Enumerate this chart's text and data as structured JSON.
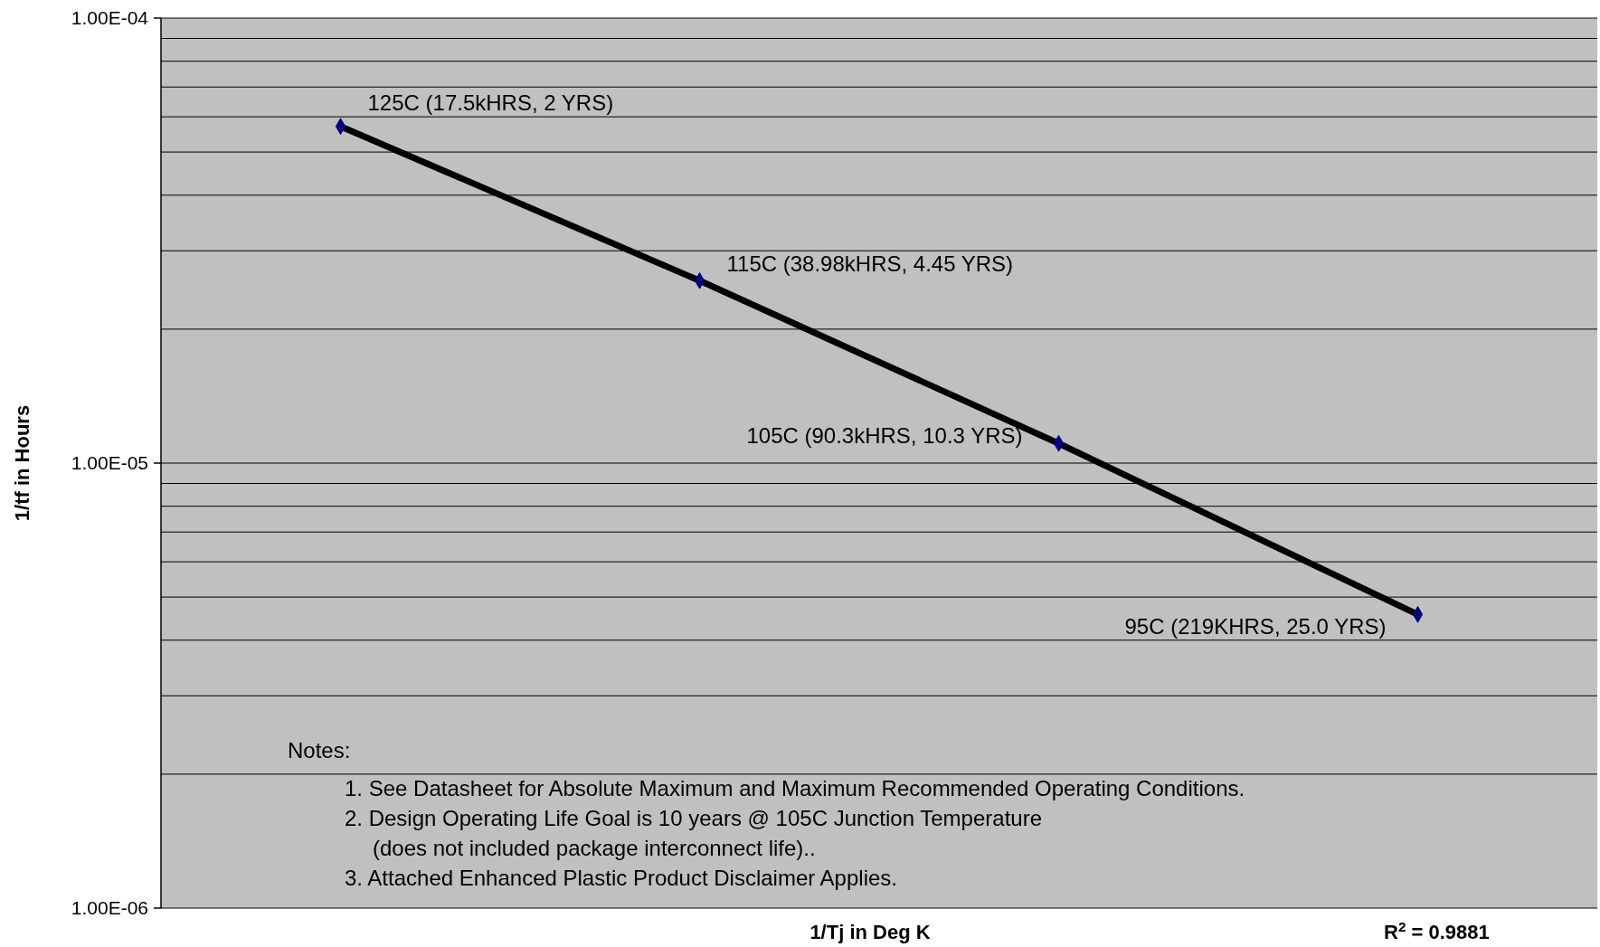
{
  "chart_data": {
    "type": "line",
    "xlabel": "1/Tj in Deg K",
    "ylabel": "1/tf in Hours",
    "categories": [
      null,
      null,
      null,
      null
    ],
    "series": [
      {
        "color": "#000000",
        "values": [
          5.71e-05,
          2.57e-05,
          1.107e-05,
          4.57e-06
        ]
      }
    ],
    "log": "y",
    "ylim": [
      1e-06,
      0.0001
    ],
    "yticks": [
      {
        "value": 1e-06,
        "label": "1.00E-06"
      },
      {
        "value": 2e-06,
        "label": null
      },
      {
        "value": 3e-06,
        "label": null
      },
      {
        "value": 4e-06,
        "label": null
      },
      {
        "value": 5e-06,
        "label": null
      },
      {
        "value": 6e-06,
        "label": null
      },
      {
        "value": 7e-06,
        "label": null
      },
      {
        "value": 8e-06,
        "label": null
      },
      {
        "value": 9e-06,
        "label": null
      },
      {
        "value": 1e-05,
        "label": "1.00E-05"
      },
      {
        "value": 2e-05,
        "label": null
      },
      {
        "value": 3e-05,
        "label": null
      },
      {
        "value": 4e-05,
        "label": null
      },
      {
        "value": 5e-05,
        "label": null
      },
      {
        "value": 6e-05,
        "label": null
      },
      {
        "value": 7e-05,
        "label": null
      },
      {
        "value": 8e-05,
        "label": null
      },
      {
        "value": 9e-05,
        "label": null
      },
      {
        "value": 0.0001,
        "label": "1.00E-04"
      }
    ],
    "grid": "y",
    "marker": "diamond",
    "line_style": "solid",
    "tick_labels": "y",
    "annotations": [
      "125C (17.5kHRS, 2 YRS)",
      "115C (38.98kHRS, 4.45 YRS)",
      "105C (90.3kHRS, 10.3 YRS)",
      "95C (219KHRS, 25.0 YRS)",
      "Notes:",
      "1.  See Datasheet for Absolute Maximum and Maximum Recommended Operating Conditions.",
      "2.  Design Operating Life Goal is 10 years @ 105C Junction Temperature",
      "(does not included package interconnect life)..",
      "3.  Attached Enhanced Plastic Product Disclaimer Applies.",
      "R$^{2}$ = 0.9881"
    ]
  }
}
